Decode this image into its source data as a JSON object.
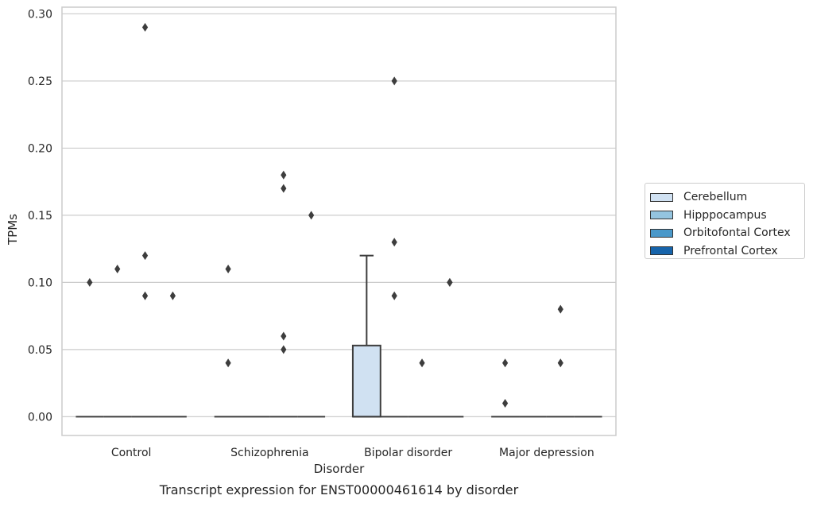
{
  "chart_data": {
    "type": "box",
    "title": "Transcript expression for ENST00000461614 by disorder",
    "xlabel": "Disorder",
    "ylabel": "TPMs",
    "ylim": [
      -0.014,
      0.305
    ],
    "yticks": [
      "0.00",
      "0.05",
      "0.10",
      "0.15",
      "0.20",
      "0.25",
      "0.30"
    ],
    "categories": [
      "Control",
      "Schizophrenia",
      "Bipolar disorder",
      "Major depression"
    ],
    "grid": "horizontal",
    "legend_position": "right",
    "series": [
      {
        "name": "Cerebellum",
        "color": "#d0e1f2",
        "boxes": [
          {
            "q1": 0,
            "median": 0,
            "q3": 0,
            "whisker_low": 0,
            "whisker_high": 0,
            "outliers": [
              0.1
            ]
          },
          {
            "q1": 0,
            "median": 0,
            "q3": 0,
            "whisker_low": 0,
            "whisker_high": 0,
            "outliers": [
              0.11,
              0.04
            ]
          },
          {
            "q1": 0,
            "median": 0,
            "q3": 0.053,
            "whisker_low": 0,
            "whisker_high": 0.12,
            "outliers": []
          },
          {
            "q1": 0,
            "median": 0,
            "q3": 0,
            "whisker_low": 0,
            "whisker_high": 0,
            "outliers": [
              0.04,
              0.01
            ]
          }
        ]
      },
      {
        "name": "Hipppocampus",
        "color": "#94c4df",
        "boxes": [
          {
            "q1": 0,
            "median": 0,
            "q3": 0,
            "whisker_low": 0,
            "whisker_high": 0,
            "outliers": [
              0.11
            ]
          },
          {
            "q1": 0,
            "median": 0,
            "q3": 0,
            "whisker_low": 0,
            "whisker_high": 0,
            "outliers": []
          },
          {
            "q1": 0,
            "median": 0,
            "q3": 0,
            "whisker_low": 0,
            "whisker_high": 0,
            "outliers": [
              0.25,
              0.13,
              0.09
            ]
          },
          {
            "q1": 0,
            "median": 0,
            "q3": 0,
            "whisker_low": 0,
            "whisker_high": 0,
            "outliers": []
          }
        ]
      },
      {
        "name": "Orbitofontal Cortex",
        "color": "#4a98c9",
        "boxes": [
          {
            "q1": 0,
            "median": 0,
            "q3": 0,
            "whisker_low": 0,
            "whisker_high": 0,
            "outliers": [
              0.29,
              0.12,
              0.09
            ]
          },
          {
            "q1": 0,
            "median": 0,
            "q3": 0,
            "whisker_low": 0,
            "whisker_high": 0,
            "outliers": [
              0.18,
              0.17,
              0.06,
              0.05
            ]
          },
          {
            "q1": 0,
            "median": 0,
            "q3": 0,
            "whisker_low": 0,
            "whisker_high": 0,
            "outliers": [
              0.04
            ]
          },
          {
            "q1": 0,
            "median": 0,
            "q3": 0,
            "whisker_low": 0,
            "whisker_high": 0,
            "outliers": [
              0.08,
              0.04
            ]
          }
        ]
      },
      {
        "name": "Prefrontal Cortex",
        "color": "#1764ab",
        "boxes": [
          {
            "q1": 0,
            "median": 0,
            "q3": 0,
            "whisker_low": 0,
            "whisker_high": 0,
            "outliers": [
              0.09
            ]
          },
          {
            "q1": 0,
            "median": 0,
            "q3": 0,
            "whisker_low": 0,
            "whisker_high": 0,
            "outliers": [
              0.15
            ]
          },
          {
            "q1": 0,
            "median": 0,
            "q3": 0,
            "whisker_low": 0,
            "whisker_high": 0,
            "outliers": [
              0.1,
              0.1
            ]
          },
          {
            "q1": 0,
            "median": 0,
            "q3": 0,
            "whisker_low": 0,
            "whisker_high": 0,
            "outliers": []
          }
        ]
      }
    ]
  }
}
